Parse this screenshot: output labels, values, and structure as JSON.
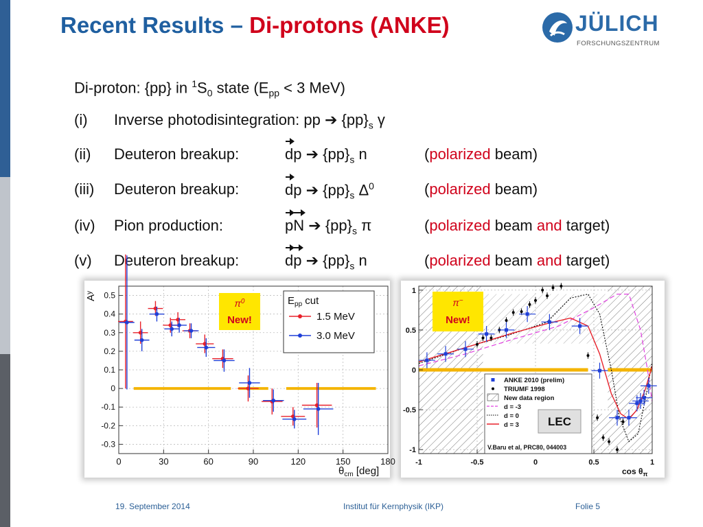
{
  "title": {
    "main": "Recent Results – ",
    "highlight": "Di-protons (ANKE)"
  },
  "logo": {
    "name": "JÜLICH",
    "subtitle": "FORSCHUNGSZENTRUM"
  },
  "intro": {
    "a": "Di-proton: {pp} in ",
    "sup": "1",
    "b": "S",
    "sub0": "0",
    "c": " state (E",
    "subpp": "pp",
    "d": " < 3 MeV)"
  },
  "items": [
    {
      "num": "(i)",
      "text": "Inverse photodisintegration: pp ",
      "arrow": "➔",
      "prod": " {pp}",
      "sub": "s",
      "tail": " γ"
    },
    {
      "num": "(ii)",
      "label": "Deuteron breakup:",
      "reac": "dp",
      "arrow": "➔",
      "prod": " {pp}",
      "sub": "s",
      "tail": " n",
      "note_open": "(",
      "note_red": "polarized",
      "note_rest": " beam)"
    },
    {
      "num": "(iii)",
      "label": "Deuteron breakup:",
      "reac": "dp",
      "arrow": "➔",
      "prod": " {pp}",
      "sub": "s",
      "tail": " Δ",
      "tail_sup": "0",
      "note_open": "(",
      "note_red": "polarized",
      "note_rest": " beam)"
    },
    {
      "num": "(iv)",
      "label": "Pion production:",
      "reac": "pN",
      "arrow": "➔",
      "prod": " {pp}",
      "sub": "s",
      "tail": " π",
      "note_open": "(",
      "note_red": "polarized",
      "note_mid": " beam ",
      "note_red2": "and",
      "note_rest": " target)"
    },
    {
      "num": "(v)",
      "label": "Deuteron breakup:",
      "reac": "dp",
      "arrow": "➔",
      "prod": " {pp}",
      "sub": "s",
      "tail": " n",
      "note_open": "(",
      "note_red": "polarized",
      "note_mid": " beam ",
      "note_red2": "and",
      "note_rest": " target)"
    }
  ],
  "plot_left": {
    "badge_pi": "π",
    "badge_sup": "0",
    "badge_new": "New!",
    "legend_title": "E",
    "legend_title_sub": "pp",
    "legend_title_rest": " cut",
    "ylabel": "A",
    "ylabel_sub": "y",
    "xlabel": "θ",
    "xlabel_sub": "cm",
    "xlabel_rest": " [deg]"
  },
  "plot_right": {
    "badge_pi": "π",
    "badge_sup": "−",
    "badge_new": "New!",
    "lec": "LEC",
    "xlabel": "cos θ",
    "xlabel_sub": "π",
    "legend": [
      {
        "label": "ANKE 2010 (prelim)",
        "marker": "blue-square"
      },
      {
        "label": "TRIUMF 1998",
        "marker": "black-dot"
      },
      {
        "label": "New data region",
        "marker": "hatched-box"
      },
      {
        "label": "d = -3",
        "marker": "magenta-dash"
      },
      {
        "label": "d = 0",
        "marker": "black-dotted"
      },
      {
        "label": "d = 3",
        "marker": "red-line"
      }
    ],
    "ref": "V.Baru et al, PRC80, 044003"
  },
  "chart_data": [
    {
      "type": "scatter",
      "title": "",
      "xlabel": "θcm [deg]",
      "ylabel": "Ay",
      "xlim": [
        0,
        180
      ],
      "ylim": [
        -0.35,
        0.55
      ],
      "xticks": [
        0,
        30,
        60,
        90,
        120,
        150,
        180
      ],
      "yticks": [
        -0.3,
        -0.2,
        -0.1,
        0,
        0.1,
        0.2,
        0.3,
        0.4,
        0.5
      ],
      "yticklabels": [
        "-0.3",
        "-0.2",
        "-0.1",
        "0",
        "0.1",
        "0.2",
        "0.3",
        "0.4",
        "0.5"
      ],
      "legend_placement": "top-right",
      "series": [
        {
          "name": "1.5 MeV",
          "color": "#e8202a",
          "points": [
            [
              5,
              0.36,
              0.36
            ],
            [
              15,
              0.3,
              0.06
            ],
            [
              25,
              0.43,
              0.04
            ],
            [
              35,
              0.34,
              0.04
            ],
            [
              40,
              0.37,
              0.04
            ],
            [
              48,
              0.31,
              0.04
            ],
            [
              58,
              0.24,
              0.05
            ],
            [
              70,
              0.16,
              0.05
            ],
            [
              87,
              0.0,
              0.07
            ],
            [
              103,
              -0.07,
              0.07
            ],
            [
              117,
              -0.15,
              0.05
            ],
            [
              133,
              -0.09,
              0.12
            ]
          ],
          "xerr": [
            5,
            5,
            5,
            5,
            5,
            5,
            6,
            7,
            7,
            7,
            8,
            10
          ]
        },
        {
          "name": "3.0 MeV",
          "color": "#1f3fd8",
          "points": [
            [
              5,
              0.355,
              0.36
            ],
            [
              15,
              0.26,
              0.06
            ],
            [
              25,
              0.4,
              0.04
            ],
            [
              35,
              0.32,
              0.04
            ],
            [
              40,
              0.34,
              0.04
            ],
            [
              48,
              0.31,
              0.04
            ],
            [
              58,
              0.22,
              0.05
            ],
            [
              70,
              0.15,
              0.06
            ],
            [
              87,
              0.03,
              0.08
            ],
            [
              103,
              -0.065,
              0.06
            ],
            [
              117,
              -0.165,
              0.05
            ],
            [
              133,
              -0.11,
              0.14
            ]
          ],
          "xerr": [
            5,
            5,
            5,
            5,
            5,
            5,
            6,
            7,
            7,
            7,
            8,
            10
          ]
        }
      ]
    },
    {
      "type": "scatter",
      "title": "",
      "xlabel": "cos θπ",
      "ylabel": "",
      "xlim": [
        -1,
        1
      ],
      "ylim": [
        -1.05,
        1.05
      ],
      "xticks": [
        -1,
        -0.5,
        0,
        0.5,
        1
      ],
      "xticklabels": [
        "-1",
        "-0.5",
        "0",
        "0.5",
        "1"
      ],
      "yticks": [
        -1,
        -0.5,
        0,
        0.5,
        1
      ],
      "yticklabels": [
        "-1",
        "-0.5",
        "0",
        "0.5",
        "1"
      ],
      "series": [
        {
          "name": "ANKE 2010 (prelim)",
          "color": "#1f3fd8",
          "points": [
            [
              -0.93,
              0.12
            ],
            [
              -0.77,
              0.2
            ],
            [
              -0.6,
              0.26
            ],
            [
              -0.42,
              0.45
            ],
            [
              -0.25,
              0.5
            ],
            [
              -0.07,
              0.7
            ],
            [
              0.12,
              0.6
            ],
            [
              0.38,
              0.55
            ],
            [
              0.55,
              -0.01
            ],
            [
              0.7,
              -0.6
            ],
            [
              0.8,
              -0.6
            ],
            [
              0.87,
              -0.42
            ],
            [
              0.9,
              -0.39
            ],
            [
              0.93,
              -0.35
            ],
            [
              0.97,
              -0.2
            ]
          ]
        },
        {
          "name": "TRIUMF 1998",
          "color": "#000000",
          "points": [
            [
              -0.5,
              0.32
            ],
            [
              -0.45,
              0.4
            ],
            [
              -0.38,
              0.4
            ],
            [
              -0.31,
              0.5
            ],
            [
              -0.25,
              0.62
            ],
            [
              -0.19,
              0.72
            ],
            [
              -0.12,
              0.73
            ],
            [
              -0.05,
              0.82
            ],
            [
              0.0,
              0.87
            ],
            [
              0.06,
              1.0
            ],
            [
              0.1,
              0.93
            ],
            [
              0.15,
              1.03
            ],
            [
              0.22,
              1.05
            ],
            [
              0.45,
              0.18
            ],
            [
              0.53,
              -0.6
            ],
            [
              0.58,
              -0.85
            ],
            [
              0.63,
              -0.9
            ],
            [
              0.7,
              -1.0
            ],
            [
              0.75,
              -0.65
            ]
          ]
        }
      ]
    }
  ],
  "footer": {
    "date": "19. September 2014",
    "institute": "Institut für Kernphysik (IKP)",
    "slide": "Folie 5"
  }
}
